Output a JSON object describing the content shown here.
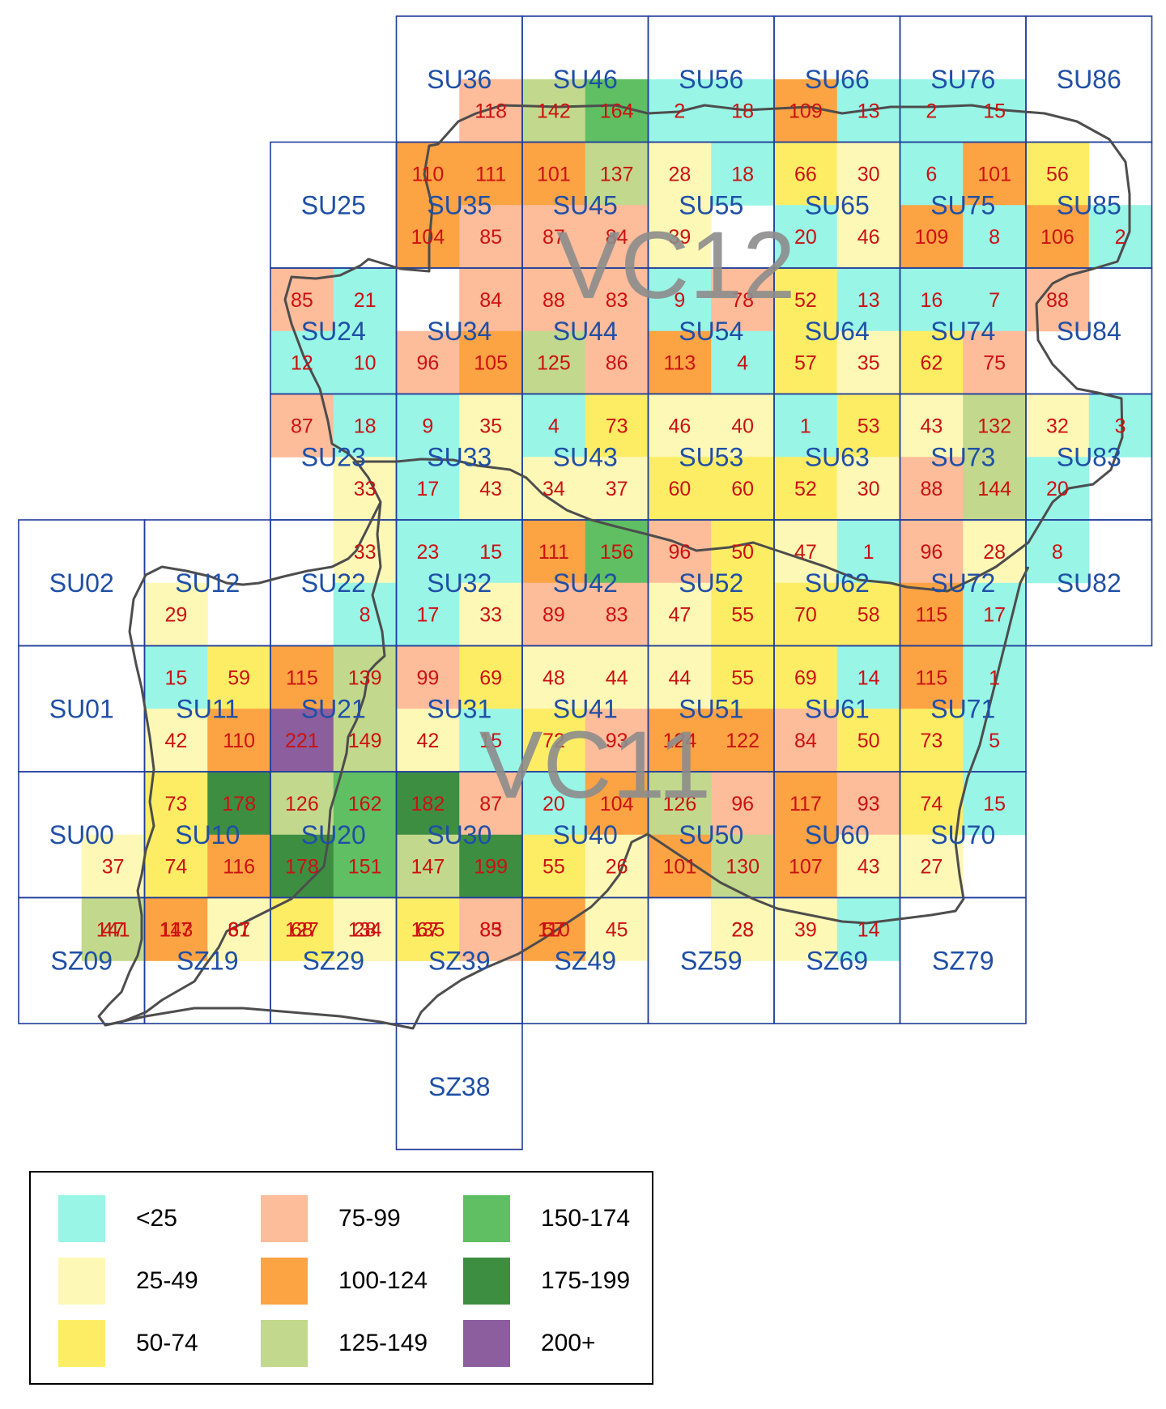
{
  "vc_labels": [
    "VC12",
    "VC11"
  ],
  "hectads": [
    "SU36",
    "SU46",
    "SU56",
    "SU66",
    "SU76",
    "SU86",
    "SU25",
    "SU35",
    "SU45",
    "SU55",
    "SU65",
    "SU75",
    "SU85",
    "SU24",
    "SU34",
    "SU44",
    "SU54",
    "SU64",
    "SU74",
    "SU84",
    "SU23",
    "SU33",
    "SU43",
    "SU53",
    "SU63",
    "SU73",
    "SU83",
    "SU02",
    "SU12",
    "SU22",
    "SU32",
    "SU42",
    "SU52",
    "SU62",
    "SU72",
    "SU82",
    "SU01",
    "SU11",
    "SU21",
    "SU31",
    "SU41",
    "SU51",
    "SU61",
    "SU71",
    "SU00",
    "SU10",
    "SU20",
    "SU30",
    "SU40",
    "SU50",
    "SU60",
    "SU70",
    "SZ09",
    "SZ19",
    "SZ29",
    "SZ39",
    "SZ49",
    "SZ59",
    "SZ69",
    "SZ79",
    "SZ38"
  ],
  "tetrads": [
    {
      "count": "118",
      "band": 3
    },
    {
      "count": "142",
      "band": 5
    },
    {
      "count": "164",
      "band": 6
    },
    {
      "count": "2",
      "band": 0
    },
    {
      "count": "18",
      "band": 0
    },
    {
      "count": "109",
      "band": 4
    },
    {
      "count": "13",
      "band": 0
    },
    {
      "count": "2",
      "band": 0
    },
    {
      "count": "15",
      "band": 0
    },
    {
      "count": "110",
      "band": 4
    },
    {
      "count": "111",
      "band": 4
    },
    {
      "count": "101",
      "band": 4
    },
    {
      "count": "137",
      "band": 5
    },
    {
      "count": "28",
      "band": 1
    },
    {
      "count": "18",
      "band": 0
    },
    {
      "count": "66",
      "band": 2
    },
    {
      "count": "30",
      "band": 1
    },
    {
      "count": "6",
      "band": 0
    },
    {
      "count": "101",
      "band": 4
    },
    {
      "count": "56",
      "band": 2
    },
    {
      "count": "104",
      "band": 4
    },
    {
      "count": "85",
      "band": 3
    },
    {
      "count": "87",
      "band": 3
    },
    {
      "count": "84",
      "band": 3
    },
    {
      "count": "39",
      "band": 1
    },
    {
      "count": "20",
      "band": 0
    },
    {
      "count": "46",
      "band": 1
    },
    {
      "count": "109",
      "band": 4
    },
    {
      "count": "8",
      "band": 0
    },
    {
      "count": "106",
      "band": 4
    },
    {
      "count": "2",
      "band": 0
    },
    {
      "count": "85",
      "band": 3
    },
    {
      "count": "21",
      "band": 0
    },
    {
      "count": "84",
      "band": 3
    },
    {
      "count": "88",
      "band": 3
    },
    {
      "count": "83",
      "band": 3
    },
    {
      "count": "9",
      "band": 0
    },
    {
      "count": "78",
      "band": 3
    },
    {
      "count": "52",
      "band": 2
    },
    {
      "count": "13",
      "band": 0
    },
    {
      "count": "16",
      "band": 0
    },
    {
      "count": "7",
      "band": 0
    },
    {
      "count": "88",
      "band": 3
    },
    {
      "count": "12",
      "band": 0
    },
    {
      "count": "10",
      "band": 0
    },
    {
      "count": "96",
      "band": 3
    },
    {
      "count": "105",
      "band": 4
    },
    {
      "count": "125",
      "band": 5
    },
    {
      "count": "86",
      "band": 3
    },
    {
      "count": "113",
      "band": 4
    },
    {
      "count": "4",
      "band": 0
    },
    {
      "count": "57",
      "band": 2
    },
    {
      "count": "35",
      "band": 1
    },
    {
      "count": "62",
      "band": 2
    },
    {
      "count": "75",
      "band": 3
    },
    {
      "count": "87",
      "band": 3
    },
    {
      "count": "18",
      "band": 0
    },
    {
      "count": "9",
      "band": 0
    },
    {
      "count": "35",
      "band": 1
    },
    {
      "count": "4",
      "band": 0
    },
    {
      "count": "73",
      "band": 2
    },
    {
      "count": "46",
      "band": 1
    },
    {
      "count": "40",
      "band": 1
    },
    {
      "count": "1",
      "band": 0
    },
    {
      "count": "53",
      "band": 2
    },
    {
      "count": "43",
      "band": 1
    },
    {
      "count": "132",
      "band": 5
    },
    {
      "count": "32",
      "band": 1
    },
    {
      "count": "3",
      "band": 0
    },
    {
      "count": "33",
      "band": 1
    },
    {
      "count": "17",
      "band": 0
    },
    {
      "count": "43",
      "band": 1
    },
    {
      "count": "34",
      "band": 1
    },
    {
      "count": "37",
      "band": 1
    },
    {
      "count": "60",
      "band": 2
    },
    {
      "count": "60",
      "band": 2
    },
    {
      "count": "52",
      "band": 2
    },
    {
      "count": "30",
      "band": 1
    },
    {
      "count": "88",
      "band": 3
    },
    {
      "count": "144",
      "band": 5
    },
    {
      "count": "20",
      "band": 0
    },
    {
      "count": "33",
      "band": 1
    },
    {
      "count": "23",
      "band": 0
    },
    {
      "count": "15",
      "band": 0
    },
    {
      "count": "111",
      "band": 4
    },
    {
      "count": "156",
      "band": 6
    },
    {
      "count": "96",
      "band": 3
    },
    {
      "count": "50",
      "band": 2
    },
    {
      "count": "47",
      "band": 1
    },
    {
      "count": "1",
      "band": 0
    },
    {
      "count": "96",
      "band": 3
    },
    {
      "count": "28",
      "band": 1
    },
    {
      "count": "8",
      "band": 0
    },
    {
      "count": "29",
      "band": 1
    },
    {
      "count": "8",
      "band": 0
    },
    {
      "count": "17",
      "band": 0
    },
    {
      "count": "33",
      "band": 1
    },
    {
      "count": "89",
      "band": 3
    },
    {
      "count": "83",
      "band": 3
    },
    {
      "count": "47",
      "band": 1
    },
    {
      "count": "55",
      "band": 2
    },
    {
      "count": "70",
      "band": 2
    },
    {
      "count": "58",
      "band": 2
    },
    {
      "count": "115",
      "band": 4
    },
    {
      "count": "17",
      "band": 0
    },
    {
      "count": "15",
      "band": 0
    },
    {
      "count": "59",
      "band": 2
    },
    {
      "count": "115",
      "band": 4
    },
    {
      "count": "139",
      "band": 5
    },
    {
      "count": "99",
      "band": 3
    },
    {
      "count": "69",
      "band": 2
    },
    {
      "count": "48",
      "band": 1
    },
    {
      "count": "44",
      "band": 1
    },
    {
      "count": "44",
      "band": 1
    },
    {
      "count": "55",
      "band": 2
    },
    {
      "count": "69",
      "band": 2
    },
    {
      "count": "14",
      "band": 0
    },
    {
      "count": "115",
      "band": 4
    },
    {
      "count": "1",
      "band": 0
    },
    {
      "count": "42",
      "band": 1
    },
    {
      "count": "110",
      "band": 4
    },
    {
      "count": "221",
      "band": 8
    },
    {
      "count": "149",
      "band": 5
    },
    {
      "count": "42",
      "band": 1
    },
    {
      "count": "15",
      "band": 0
    },
    {
      "count": "72",
      "band": 2
    },
    {
      "count": "93",
      "band": 3
    },
    {
      "count": "124",
      "band": 4
    },
    {
      "count": "122",
      "band": 4
    },
    {
      "count": "84",
      "band": 3
    },
    {
      "count": "50",
      "band": 2
    },
    {
      "count": "73",
      "band": 2
    },
    {
      "count": "5",
      "band": 0
    },
    {
      "count": "73",
      "band": 2
    },
    {
      "count": "178",
      "band": 7
    },
    {
      "count": "126",
      "band": 5
    },
    {
      "count": "162",
      "band": 6
    },
    {
      "count": "182",
      "band": 7
    },
    {
      "count": "87",
      "band": 3
    },
    {
      "count": "20",
      "band": 0
    },
    {
      "count": "104",
      "band": 4
    },
    {
      "count": "126",
      "band": 5
    },
    {
      "count": "96",
      "band": 3
    },
    {
      "count": "117",
      "band": 4
    },
    {
      "count": "93",
      "band": 3
    },
    {
      "count": "74",
      "band": 2
    },
    {
      "count": "15",
      "band": 0
    },
    {
      "count": "37",
      "band": 1
    },
    {
      "count": "74",
      "band": 2
    },
    {
      "count": "116",
      "band": 4
    },
    {
      "count": "178",
      "band": 7
    },
    {
      "count": "151",
      "band": 6
    },
    {
      "count": "147",
      "band": 5
    },
    {
      "count": "199",
      "band": 7
    },
    {
      "count": "55",
      "band": 2
    },
    {
      "count": "26",
      "band": 1
    },
    {
      "count": "101",
      "band": 4
    },
    {
      "count": "130",
      "band": 5
    },
    {
      "count": "107",
      "band": 4
    },
    {
      "count": "43",
      "band": 1
    },
    {
      "count": "27",
      "band": 1
    },
    {
      "count": "47",
      "band": 1
    },
    {
      "count": "143",
      "band": 5
    },
    {
      "count": "67",
      "band": 2
    },
    {
      "count": "127",
      "band": 5
    },
    {
      "count": "134",
      "band": 5
    },
    {
      "count": "135",
      "band": 5
    },
    {
      "count": "83",
      "band": 3
    },
    {
      "count": "57",
      "band": 2
    },
    {
      "count": "23",
      "band": 0
    },
    {
      "count": "141",
      "band": 5
    },
    {
      "count": "117",
      "band": 4
    },
    {
      "count": "31",
      "band": 1
    },
    {
      "count": "68",
      "band": 2
    },
    {
      "count": "28",
      "band": 1
    },
    {
      "count": "67",
      "band": 2
    },
    {
      "count": "85",
      "band": 3
    },
    {
      "count": "110",
      "band": 4
    },
    {
      "count": "45",
      "band": 1
    },
    {
      "count": "28",
      "band": 1
    },
    {
      "count": "39",
      "band": 1
    },
    {
      "count": "14",
      "band": 0
    }
  ],
  "legend": [
    {
      "label": "<25",
      "color": "#99f5e6"
    },
    {
      "label": "25-49",
      "color": "#fef8b7"
    },
    {
      "label": "50-74",
      "color": "#fded65"
    },
    {
      "label": "75-99",
      "color": "#fdbc9a"
    },
    {
      "label": "100-124",
      "color": "#fca344"
    },
    {
      "label": "125-149",
      "color": "#c2d88c"
    },
    {
      "label": "150-174",
      "color": "#60bf63"
    },
    {
      "label": "175-199",
      "color": "#3e8e42"
    },
    {
      "label": "200+",
      "color": "#8c5e9d"
    }
  ],
  "colors": {
    "grid_line": "#1f3d99",
    "hectad_label": "#1f4fa6",
    "count_text": "#cc1111",
    "coastline": "#4d4d4d",
    "vc_label": "#8c8c8c"
  }
}
